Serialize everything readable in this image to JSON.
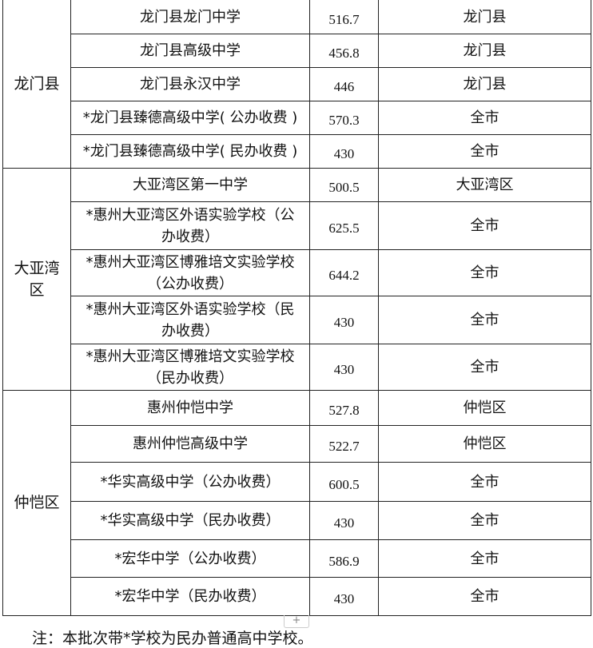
{
  "groups": [
    {
      "district": "龙门县",
      "rows": [
        {
          "school": "龙门县龙门中学",
          "score": "516.7",
          "area": "龙门县"
        },
        {
          "school": "龙门县高级中学",
          "score": "456.8",
          "area": "龙门县"
        },
        {
          "school": "龙门县永汉中学",
          "score": "446",
          "area": "龙门县"
        },
        {
          "school": "*龙门县臻德高级中学( 公办收费 )",
          "score": "570.3",
          "area": "全市"
        },
        {
          "school": "*龙门县臻德高级中学( 民办收费 )",
          "score": "430",
          "area": "全市"
        }
      ]
    },
    {
      "district": "大亚湾区",
      "rows": [
        {
          "school": "大亚湾区第一中学",
          "score": "500.5",
          "area": "大亚湾区"
        },
        {
          "school": "*惠州大亚湾区外语实验学校（公办收费）",
          "score": "625.5",
          "area": "全市"
        },
        {
          "school": "*惠州大亚湾区博雅培文实验学校（公办收费）",
          "score": "644.2",
          "area": "全市"
        },
        {
          "school": "*惠州大亚湾区外语实验学校（民办收费）",
          "score": "430",
          "area": "全市"
        },
        {
          "school": "*惠州大亚湾区博雅培文实验学校（民办收费）",
          "score": "430",
          "area": "全市"
        }
      ]
    },
    {
      "district": "仲恺区",
      "rows": [
        {
          "school": "惠州仲恺中学",
          "score": "527.8",
          "area": "仲恺区"
        },
        {
          "school": "惠州仲恺高级中学",
          "score": "522.7",
          "area": "仲恺区"
        },
        {
          "school": "*华实高级中学（公办收费）",
          "score": "600.5",
          "area": "全市"
        },
        {
          "school": "*华实高级中学（民办收费）",
          "score": "430",
          "area": "全市"
        },
        {
          "school": "*宏华中学（公办收费）",
          "score": "586.9",
          "area": "全市"
        },
        {
          "school": "*宏华中学（民办收费）",
          "score": "430",
          "area": "全市"
        }
      ]
    }
  ],
  "add_row_label": "+",
  "note": "注：本批次带*学校为民办普通高中学校。"
}
